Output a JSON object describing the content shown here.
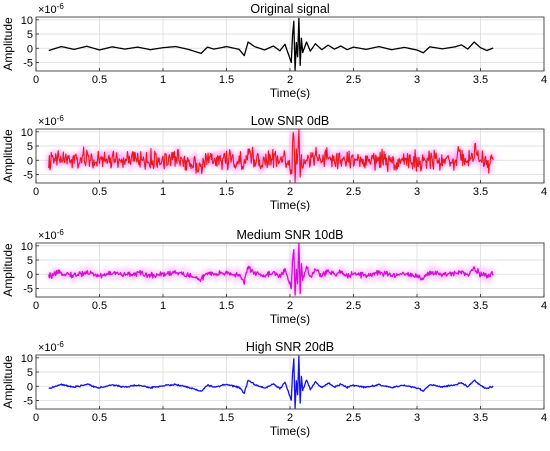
{
  "chart_data": [
    {
      "type": "line",
      "title": "Original signal",
      "xlabel": "Time(s)",
      "ylabel": "Amplitude",
      "y_multiplier": "×10",
      "y_multiplier_exp": "-6",
      "xlim": [
        0,
        4
      ],
      "ylim": [
        -8,
        11
      ],
      "xticks": [
        0,
        0.5,
        1,
        1.5,
        2,
        2.5,
        3,
        3.5,
        4
      ],
      "xtick_labels": [
        "0",
        "0.5",
        "1",
        "1.5",
        "2",
        "2.5",
        "3",
        "3.5",
        "4"
      ],
      "yticks": [
        -5,
        0,
        5,
        10
      ],
      "ytick_labels": [
        "-5",
        "0",
        "5",
        "10"
      ],
      "grid": true,
      "noise_level": 0,
      "series": [
        {
          "color": "#000000",
          "x_range": [
            0.1,
            3.6
          ],
          "points": [
            [
              0.1,
              -0.8
            ],
            [
              0.2,
              0.6
            ],
            [
              0.3,
              -0.4
            ],
            [
              0.4,
              0.7
            ],
            [
              0.5,
              -0.6
            ],
            [
              0.6,
              0.5
            ],
            [
              0.7,
              -0.3
            ],
            [
              0.8,
              0.4
            ],
            [
              0.9,
              -0.5
            ],
            [
              1.0,
              0.2
            ],
            [
              1.1,
              0.6
            ],
            [
              1.2,
              -0.4
            ],
            [
              1.3,
              -1.8
            ],
            [
              1.35,
              0.4
            ],
            [
              1.4,
              -0.3
            ],
            [
              1.5,
              0.6
            ],
            [
              1.6,
              -0.4
            ],
            [
              1.64,
              -2.6
            ],
            [
              1.67,
              2.2
            ],
            [
              1.72,
              0.6
            ],
            [
              1.8,
              -0.6
            ],
            [
              1.87,
              0.8
            ],
            [
              1.92,
              -0.9
            ],
            [
              1.96,
              1.4
            ],
            [
              1.99,
              -2.4
            ],
            [
              2.01,
              -5.0
            ],
            [
              2.02,
              4.5
            ],
            [
              2.03,
              9.5
            ],
            [
              2.04,
              -8.0
            ],
            [
              2.05,
              2.0
            ],
            [
              2.06,
              -3.0
            ],
            [
              2.07,
              10.5
            ],
            [
              2.08,
              -6.0
            ],
            [
              2.09,
              3.5
            ],
            [
              2.1,
              -1.5
            ],
            [
              2.13,
              2.2
            ],
            [
              2.16,
              -1.0
            ],
            [
              2.2,
              1.6
            ],
            [
              2.25,
              -0.5
            ],
            [
              2.3,
              1.1
            ],
            [
              2.35,
              -0.3
            ],
            [
              2.4,
              0.8
            ],
            [
              2.45,
              -0.5
            ],
            [
              2.5,
              0.4
            ],
            [
              2.6,
              -0.4
            ],
            [
              2.7,
              0.6
            ],
            [
              2.8,
              -0.5
            ],
            [
              2.9,
              0.3
            ],
            [
              3.0,
              -0.6
            ],
            [
              3.05,
              -1.6
            ],
            [
              3.1,
              0.5
            ],
            [
              3.2,
              -0.2
            ],
            [
              3.3,
              0.5
            ],
            [
              3.35,
              1.2
            ],
            [
              3.4,
              -0.3
            ],
            [
              3.45,
              2.2
            ],
            [
              3.5,
              0.2
            ],
            [
              3.55,
              -0.8
            ],
            [
              3.6,
              0.1
            ]
          ]
        }
      ]
    },
    {
      "type": "line",
      "title": "Low SNR 0dB",
      "xlabel": "Time(s)",
      "ylabel": "Amplitude",
      "y_multiplier": "×10",
      "y_multiplier_exp": "-6",
      "xlim": [
        0,
        4
      ],
      "ylim": [
        -8,
        11
      ],
      "xticks": [
        0,
        0.5,
        1,
        1.5,
        2,
        2.5,
        3,
        3.5,
        4
      ],
      "xtick_labels": [
        "0",
        "0.5",
        "1",
        "1.5",
        "2",
        "2.5",
        "3",
        "3.5",
        "4"
      ],
      "yticks": [
        -5,
        0,
        5,
        10
      ],
      "ytick_labels": [
        "-5",
        "0",
        "5",
        "10"
      ],
      "grid": true,
      "noise_level": 2.4,
      "glow_color": "#ff66ff",
      "series": [
        {
          "color": "#e41a1c",
          "x_range": [
            0.1,
            3.6
          ],
          "points": [
            [
              0.1,
              -0.8
            ],
            [
              0.2,
              0.6
            ],
            [
              0.3,
              -0.4
            ],
            [
              0.4,
              0.7
            ],
            [
              0.5,
              -0.6
            ],
            [
              0.6,
              0.5
            ],
            [
              0.7,
              -0.3
            ],
            [
              0.8,
              0.4
            ],
            [
              0.9,
              -0.5
            ],
            [
              1.0,
              0.2
            ],
            [
              1.1,
              0.6
            ],
            [
              1.2,
              -0.4
            ],
            [
              1.3,
              -1.8
            ],
            [
              1.35,
              0.4
            ],
            [
              1.4,
              -0.3
            ],
            [
              1.5,
              0.6
            ],
            [
              1.6,
              -0.4
            ],
            [
              1.64,
              -2.6
            ],
            [
              1.67,
              2.2
            ],
            [
              1.72,
              0.6
            ],
            [
              1.8,
              -0.6
            ],
            [
              1.87,
              0.8
            ],
            [
              1.92,
              -0.9
            ],
            [
              1.96,
              1.4
            ],
            [
              1.99,
              -2.4
            ],
            [
              2.01,
              -5.0
            ],
            [
              2.02,
              4.5
            ],
            [
              2.03,
              9.5
            ],
            [
              2.04,
              -8.0
            ],
            [
              2.05,
              2.0
            ],
            [
              2.06,
              -3.0
            ],
            [
              2.07,
              10.5
            ],
            [
              2.08,
              -6.0
            ],
            [
              2.09,
              3.5
            ],
            [
              2.1,
              -1.5
            ],
            [
              2.13,
              2.2
            ],
            [
              2.16,
              -1.0
            ],
            [
              2.2,
              1.6
            ],
            [
              2.25,
              -0.5
            ],
            [
              2.3,
              1.1
            ],
            [
              2.35,
              -0.3
            ],
            [
              2.4,
              0.8
            ],
            [
              2.45,
              -0.5
            ],
            [
              2.5,
              0.4
            ],
            [
              2.6,
              -0.4
            ],
            [
              2.7,
              0.6
            ],
            [
              2.8,
              -0.5
            ],
            [
              2.9,
              0.3
            ],
            [
              3.0,
              -0.6
            ],
            [
              3.05,
              -1.6
            ],
            [
              3.1,
              0.5
            ],
            [
              3.2,
              -0.2
            ],
            [
              3.3,
              0.5
            ],
            [
              3.35,
              1.2
            ],
            [
              3.4,
              -0.3
            ],
            [
              3.45,
              2.2
            ],
            [
              3.5,
              0.2
            ],
            [
              3.55,
              -0.8
            ],
            [
              3.6,
              0.1
            ]
          ]
        }
      ]
    },
    {
      "type": "line",
      "title": "Medium SNR 10dB",
      "xlabel": "Time(s)",
      "ylabel": "Amplitude",
      "y_multiplier": "×10",
      "y_multiplier_exp": "-6",
      "xlim": [
        0,
        4
      ],
      "ylim": [
        -8,
        11
      ],
      "xticks": [
        0,
        0.5,
        1,
        1.5,
        2,
        2.5,
        3,
        3.5,
        4
      ],
      "xtick_labels": [
        "0",
        "0.5",
        "1",
        "1.5",
        "2",
        "2.5",
        "3",
        "3.5",
        "4"
      ],
      "yticks": [
        -5,
        0,
        5,
        10
      ],
      "ytick_labels": [
        "-5",
        "0",
        "5",
        "10"
      ],
      "grid": true,
      "noise_level": 0.7,
      "glow_color": "#f5a3f5",
      "series": [
        {
          "color": "#d40fd4",
          "x_range": [
            0.1,
            3.6
          ],
          "points": [
            [
              0.1,
              -0.8
            ],
            [
              0.2,
              0.6
            ],
            [
              0.3,
              -0.4
            ],
            [
              0.4,
              0.7
            ],
            [
              0.5,
              -0.6
            ],
            [
              0.6,
              0.5
            ],
            [
              0.7,
              -0.3
            ],
            [
              0.8,
              0.4
            ],
            [
              0.9,
              -0.5
            ],
            [
              1.0,
              0.2
            ],
            [
              1.1,
              0.6
            ],
            [
              1.2,
              -0.4
            ],
            [
              1.3,
              -1.8
            ],
            [
              1.35,
              0.4
            ],
            [
              1.4,
              -0.3
            ],
            [
              1.5,
              0.6
            ],
            [
              1.6,
              -0.4
            ],
            [
              1.64,
              -2.6
            ],
            [
              1.67,
              2.2
            ],
            [
              1.72,
              0.6
            ],
            [
              1.8,
              -0.6
            ],
            [
              1.87,
              0.8
            ],
            [
              1.92,
              -0.9
            ],
            [
              1.96,
              1.4
            ],
            [
              1.99,
              -2.4
            ],
            [
              2.01,
              -5.0
            ],
            [
              2.02,
              4.5
            ],
            [
              2.03,
              9.5
            ],
            [
              2.04,
              -8.0
            ],
            [
              2.05,
              2.0
            ],
            [
              2.06,
              -3.0
            ],
            [
              2.07,
              10.5
            ],
            [
              2.08,
              -6.0
            ],
            [
              2.09,
              3.5
            ],
            [
              2.1,
              -1.5
            ],
            [
              2.13,
              2.2
            ],
            [
              2.16,
              -1.0
            ],
            [
              2.2,
              1.6
            ],
            [
              2.25,
              -0.5
            ],
            [
              2.3,
              1.1
            ],
            [
              2.35,
              -0.3
            ],
            [
              2.4,
              0.8
            ],
            [
              2.45,
              -0.5
            ],
            [
              2.5,
              0.4
            ],
            [
              2.6,
              -0.4
            ],
            [
              2.7,
              0.6
            ],
            [
              2.8,
              -0.5
            ],
            [
              2.9,
              0.3
            ],
            [
              3.0,
              -0.6
            ],
            [
              3.05,
              -1.6
            ],
            [
              3.1,
              0.5
            ],
            [
              3.2,
              -0.2
            ],
            [
              3.3,
              0.5
            ],
            [
              3.35,
              1.2
            ],
            [
              3.4,
              -0.3
            ],
            [
              3.45,
              2.2
            ],
            [
              3.5,
              0.2
            ],
            [
              3.55,
              -0.8
            ],
            [
              3.6,
              0.1
            ]
          ]
        }
      ]
    },
    {
      "type": "line",
      "title": "High SNR 20dB",
      "xlabel": "Time(s)",
      "ylabel": "Amplitude",
      "y_multiplier": "×10",
      "y_multiplier_exp": "-6",
      "xlim": [
        0,
        4
      ],
      "ylim": [
        -8,
        11
      ],
      "xticks": [
        0,
        0.5,
        1,
        1.5,
        2,
        2.5,
        3,
        3.5,
        4
      ],
      "xtick_labels": [
        "0",
        "0.5",
        "1",
        "1.5",
        "2",
        "2.5",
        "3",
        "3.5",
        "4"
      ],
      "yticks": [
        -5,
        0,
        5,
        10
      ],
      "ytick_labels": [
        "-5",
        "0",
        "5",
        "10"
      ],
      "grid": true,
      "noise_level": 0.2,
      "series": [
        {
          "color": "#1414e6",
          "x_range": [
            0.1,
            3.6
          ],
          "points": [
            [
              0.1,
              -0.8
            ],
            [
              0.2,
              0.6
            ],
            [
              0.3,
              -0.4
            ],
            [
              0.4,
              0.7
            ],
            [
              0.5,
              -0.6
            ],
            [
              0.6,
              0.5
            ],
            [
              0.7,
              -0.3
            ],
            [
              0.8,
              0.4
            ],
            [
              0.9,
              -0.5
            ],
            [
              1.0,
              0.2
            ],
            [
              1.1,
              0.6
            ],
            [
              1.2,
              -0.4
            ],
            [
              1.3,
              -1.8
            ],
            [
              1.35,
              0.4
            ],
            [
              1.4,
              -0.3
            ],
            [
              1.5,
              0.6
            ],
            [
              1.6,
              -0.4
            ],
            [
              1.64,
              -2.6
            ],
            [
              1.67,
              2.2
            ],
            [
              1.72,
              0.6
            ],
            [
              1.8,
              -0.6
            ],
            [
              1.87,
              0.8
            ],
            [
              1.92,
              -0.9
            ],
            [
              1.96,
              1.4
            ],
            [
              1.99,
              -2.4
            ],
            [
              2.01,
              -5.0
            ],
            [
              2.02,
              4.5
            ],
            [
              2.03,
              9.5
            ],
            [
              2.04,
              -8.0
            ],
            [
              2.05,
              2.0
            ],
            [
              2.06,
              -3.0
            ],
            [
              2.07,
              10.5
            ],
            [
              2.08,
              -6.0
            ],
            [
              2.09,
              3.5
            ],
            [
              2.1,
              -1.5
            ],
            [
              2.13,
              2.2
            ],
            [
              2.16,
              -1.0
            ],
            [
              2.2,
              1.6
            ],
            [
              2.25,
              -0.5
            ],
            [
              2.3,
              1.1
            ],
            [
              2.35,
              -0.3
            ],
            [
              2.4,
              0.8
            ],
            [
              2.45,
              -0.5
            ],
            [
              2.5,
              0.4
            ],
            [
              2.6,
              -0.4
            ],
            [
              2.7,
              0.6
            ],
            [
              2.8,
              -0.5
            ],
            [
              2.9,
              0.3
            ],
            [
              3.0,
              -0.6
            ],
            [
              3.05,
              -1.6
            ],
            [
              3.1,
              0.5
            ],
            [
              3.2,
              -0.2
            ],
            [
              3.3,
              0.5
            ],
            [
              3.35,
              1.2
            ],
            [
              3.4,
              -0.3
            ],
            [
              3.45,
              2.2
            ],
            [
              3.5,
              0.2
            ],
            [
              3.55,
              -0.8
            ],
            [
              3.6,
              0.1
            ]
          ]
        }
      ]
    }
  ]
}
